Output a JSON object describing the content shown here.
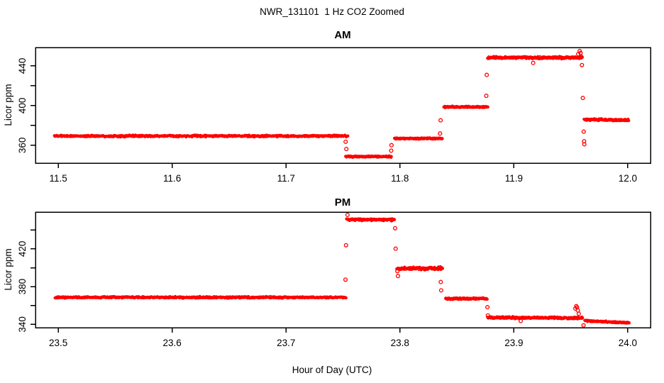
{
  "page": {
    "title": "NWR_131101  1 Hz CO2 Zoomed",
    "xlabel": "Hour of Day (UTC)"
  },
  "chart_data": [
    {
      "type": "scatter",
      "title": "AM",
      "ylabel": "Licor ppm",
      "marker": "open-circle",
      "point_color": "#ff0000",
      "frame_color": "#000000",
      "xlim": [
        11.48,
        12.02
      ],
      "ylim": [
        342.0,
        458.5
      ],
      "xticks": [
        11.5,
        11.6,
        11.7,
        11.8,
        11.9,
        12.0
      ],
      "xtick_labels": [
        "11.5",
        "11.6",
        "11.7",
        "11.8",
        "11.9",
        "12.0"
      ],
      "yticks": [
        360,
        380,
        400,
        420,
        440
      ],
      "ytick_labels": [
        "360",
        "",
        "400",
        "",
        "440"
      ],
      "segments": [
        {
          "x0": 11.497,
          "x1": 11.754,
          "y0": 369.3,
          "y1": 369.3,
          "jitter": 0.7
        },
        {
          "x0": 11.7525,
          "x1": 11.7925,
          "y0": 348.6,
          "y1": 348.6,
          "jitter": 0.6
        },
        {
          "x0": 11.7955,
          "x1": 11.8375,
          "y0": 366.8,
          "y1": 366.8,
          "jitter": 0.6
        },
        {
          "x0": 11.8385,
          "x1": 11.877,
          "y0": 398.6,
          "y1": 398.6,
          "jitter": 0.6
        },
        {
          "x0": 11.877,
          "x1": 11.96,
          "y0": 448.3,
          "y1": 448.3,
          "jitter": 0.9
        },
        {
          "x0": 11.962,
          "x1": 12.001,
          "y0": 385.9,
          "y1": 385.5,
          "jitter": 0.7
        }
      ],
      "outliers": [
        [
          11.7523,
          363.5
        ],
        [
          11.7529,
          356.2
        ],
        [
          11.7923,
          354.6
        ],
        [
          11.7926,
          360.1
        ],
        [
          11.8352,
          371.9
        ],
        [
          11.8357,
          385.2
        ],
        [
          11.8758,
          409.8
        ],
        [
          11.8762,
          430.9
        ],
        [
          11.917,
          443.0
        ],
        [
          11.9565,
          451.8
        ],
        [
          11.9578,
          455.0
        ],
        [
          11.9586,
          453.0
        ],
        [
          11.959,
          449.5
        ],
        [
          11.9598,
          440.8
        ],
        [
          11.9606,
          407.7
        ],
        [
          11.9613,
          373.7
        ],
        [
          11.9617,
          364.0
        ],
        [
          11.9619,
          361.0
        ]
      ]
    },
    {
      "type": "scatter",
      "title": "PM",
      "ylabel": "Licor ppm",
      "marker": "open-circle",
      "point_color": "#ff0000",
      "frame_color": "#000000",
      "xlim": [
        23.48,
        24.02
      ],
      "ylim": [
        336.5,
        459.0
      ],
      "xticks": [
        23.5,
        23.6,
        23.7,
        23.8,
        23.9,
        24.0
      ],
      "xtick_labels": [
        "23.5",
        "23.6",
        "23.7",
        "23.8",
        "23.9",
        "24.0"
      ],
      "yticks": [
        340,
        360,
        380,
        400,
        420,
        440
      ],
      "ytick_labels": [
        "340",
        "",
        "380",
        "",
        "420",
        ""
      ],
      "segments": [
        {
          "x0": 23.4975,
          "x1": 23.7525,
          "y0": 368.6,
          "y1": 368.6,
          "jitter": 0.7
        },
        {
          "x0": 23.7535,
          "x1": 23.7955,
          "y0": 451.0,
          "y1": 451.0,
          "jitter": 0.9
        },
        {
          "x0": 23.7975,
          "x1": 23.8375,
          "y0": 399.2,
          "y1": 399.2,
          "jitter": 1.2
        },
        {
          "x0": 23.84,
          "x1": 23.8765,
          "y0": 367.3,
          "y1": 367.3,
          "jitter": 0.8
        },
        {
          "x0": 23.877,
          "x1": 23.9605,
          "y0": 347.3,
          "y1": 346.8,
          "jitter": 0.8
        },
        {
          "x0": 23.9625,
          "x1": 24.001,
          "y0": 343.8,
          "y1": 341.6,
          "jitter": 0.6
        }
      ],
      "outliers": [
        [
          23.7522,
          387.4
        ],
        [
          23.7527,
          423.8
        ],
        [
          23.754,
          456.0
        ],
        [
          23.7958,
          441.9
        ],
        [
          23.7962,
          420.2
        ],
        [
          23.7978,
          396.4
        ],
        [
          23.7983,
          391.2
        ],
        [
          23.8358,
          384.9
        ],
        [
          23.8362,
          376.0
        ],
        [
          23.8768,
          358.2
        ],
        [
          23.8772,
          349.4
        ],
        [
          23.906,
          343.6
        ],
        [
          23.954,
          356.8
        ],
        [
          23.9548,
          359.3
        ],
        [
          23.9555,
          358.0
        ],
        [
          23.9562,
          354.8
        ],
        [
          23.957,
          351.2
        ],
        [
          23.9612,
          339.0
        ]
      ]
    }
  ]
}
